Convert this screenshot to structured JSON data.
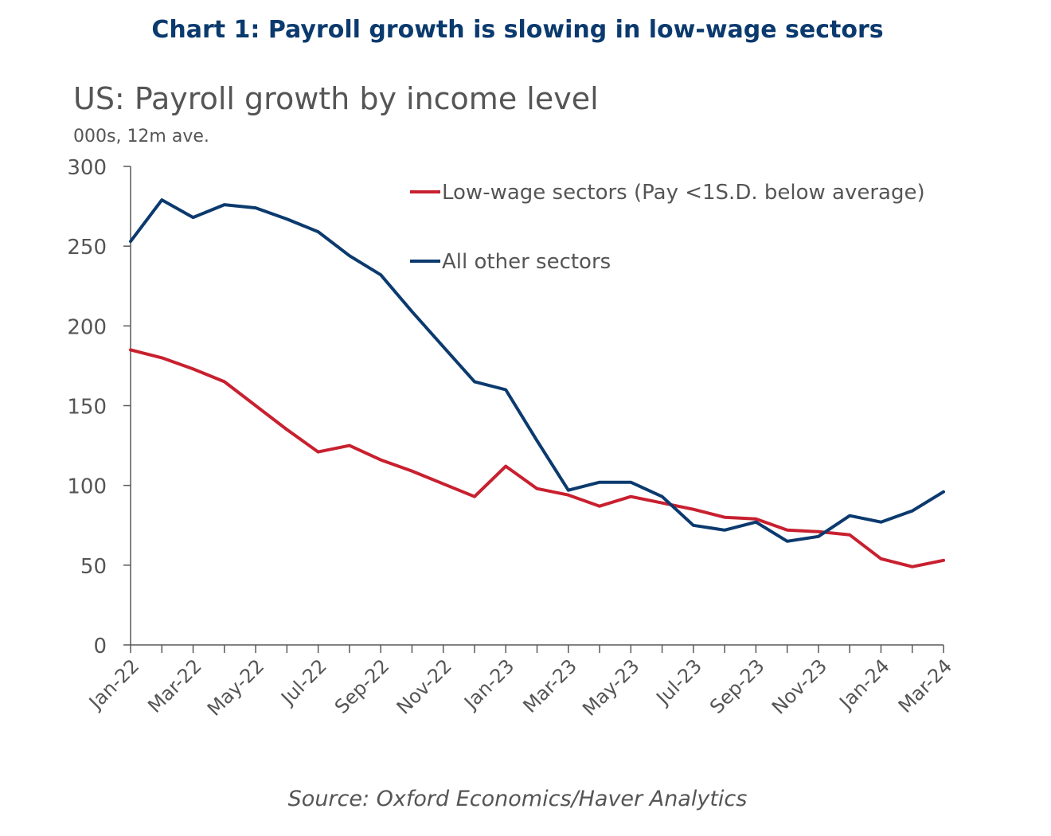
{
  "headline": "Chart 1: Payroll growth is slowing in low-wage sectors",
  "source": "Source: Oxford Economics/Haver Analytics",
  "colors": {
    "headline": "#0b3a6e",
    "low_wage": "#c8202f",
    "other": "#0b3a6e",
    "axis": "#595959"
  },
  "chart_data": {
    "type": "line",
    "title": "US: Payroll growth by income level",
    "subtitle": "000s, 12m ave.",
    "xlabel": "",
    "ylabel": "",
    "ylim": [
      0,
      300
    ],
    "yticks": [
      0,
      50,
      100,
      150,
      200,
      250,
      300
    ],
    "grid": false,
    "legend_position": "top-right",
    "x": [
      "Jan-22",
      "Feb-22",
      "Mar-22",
      "Apr-22",
      "May-22",
      "Jun-22",
      "Jul-22",
      "Aug-22",
      "Sep-22",
      "Oct-22",
      "Nov-22",
      "Dec-22",
      "Jan-23",
      "Feb-23",
      "Mar-23",
      "Apr-23",
      "May-23",
      "Jun-23",
      "Jul-23",
      "Aug-23",
      "Sep-23",
      "Oct-23",
      "Nov-23",
      "Dec-23",
      "Jan-24",
      "Feb-24",
      "Mar-24"
    ],
    "xtick_labels": [
      "Jan-22",
      "Mar-22",
      "May-22",
      "Jul-22",
      "Sep-22",
      "Nov-22",
      "Jan-23",
      "Mar-23",
      "May-23",
      "Jul-23",
      "Sep-23",
      "Nov-23",
      "Jan-24",
      "Mar-24"
    ],
    "series": [
      {
        "name": "Low-wage sectors (Pay  <1S.D. below average)",
        "color": "#c8202f",
        "values": [
          185,
          180,
          173,
          165,
          150,
          135,
          121,
          125,
          116,
          109,
          101,
          93,
          112,
          98,
          94,
          87,
          93,
          89,
          85,
          80,
          79,
          72,
          71,
          69,
          54,
          49,
          53
        ]
      },
      {
        "name": "All other sectors",
        "color": "#0b3a6e",
        "values": [
          253,
          279,
          268,
          276,
          274,
          267,
          259,
          244,
          232,
          209,
          187,
          165,
          160,
          128,
          97,
          102,
          102,
          93,
          75,
          72,
          77,
          65,
          68,
          81,
          77,
          84,
          96
        ]
      }
    ]
  }
}
